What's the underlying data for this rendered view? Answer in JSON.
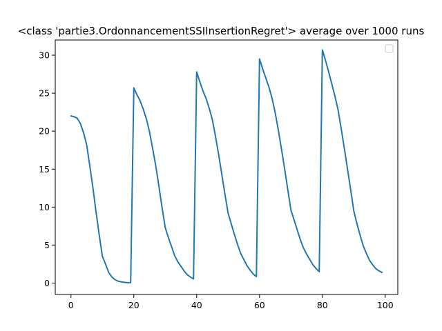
{
  "chart_data": {
    "type": "line",
    "title": "<class 'partie3.OrdonnancementSSIInsertionRegret'> average over 1000 runs",
    "xlabel": "",
    "ylabel": "",
    "xlim": [
      -5,
      104
    ],
    "ylim": [
      -1.5,
      32
    ],
    "x_ticks": [
      0,
      20,
      40,
      60,
      80,
      100
    ],
    "y_ticks": [
      0,
      5,
      10,
      15,
      20,
      25,
      30
    ],
    "grid": false,
    "legend": {
      "placement": "top-right",
      "entries": []
    },
    "series": [
      {
        "color": "#1f77b4",
        "x": [
          0,
          1,
          2,
          3,
          4,
          5,
          6,
          7,
          8,
          9,
          10,
          11,
          12,
          13,
          14,
          15,
          16,
          17,
          18,
          19,
          20,
          21,
          22,
          23,
          24,
          25,
          26,
          27,
          28,
          29,
          30,
          31,
          32,
          33,
          34,
          35,
          36,
          37,
          38,
          39,
          40,
          41,
          42,
          43,
          44,
          45,
          46,
          47,
          48,
          49,
          50,
          51,
          52,
          53,
          54,
          55,
          56,
          57,
          58,
          59,
          60,
          61,
          62,
          63,
          64,
          65,
          66,
          67,
          68,
          69,
          70,
          71,
          72,
          73,
          74,
          75,
          76,
          77,
          78,
          79,
          80,
          81,
          82,
          83,
          84,
          85,
          86,
          87,
          88,
          89,
          90,
          91,
          92,
          93,
          94,
          95,
          96,
          97,
          98,
          99
        ],
        "y": [
          22.0,
          21.9,
          21.7,
          21.0,
          19.8,
          18.2,
          15.4,
          12.5,
          9.3,
          6.3,
          3.5,
          2.5,
          1.4,
          0.8,
          0.45,
          0.25,
          0.15,
          0.1,
          0.05,
          0.05,
          25.7,
          24.8,
          24.0,
          22.9,
          21.6,
          19.9,
          17.7,
          15.4,
          12.7,
          9.9,
          7.3,
          6.0,
          4.8,
          3.6,
          2.8,
          2.2,
          1.6,
          1.1,
          0.8,
          0.55,
          27.8,
          26.5,
          25.3,
          24.3,
          23.0,
          21.5,
          19.3,
          16.9,
          14.3,
          11.7,
          9.2,
          7.8,
          6.4,
          5.1,
          3.9,
          3.1,
          2.3,
          1.7,
          1.2,
          0.85,
          29.5,
          28.2,
          27.0,
          25.8,
          24.3,
          22.4,
          20.1,
          17.6,
          15.0,
          12.3,
          9.6,
          8.3,
          7.0,
          5.7,
          4.6,
          3.8,
          3.1,
          2.4,
          1.9,
          1.5,
          30.7,
          29.3,
          27.8,
          26.2,
          24.6,
          22.8,
          20.3,
          17.7,
          15.0,
          12.3,
          9.5,
          7.8,
          6.3,
          4.9,
          3.9,
          3.0,
          2.4,
          1.9,
          1.6,
          1.4
        ]
      }
    ]
  }
}
